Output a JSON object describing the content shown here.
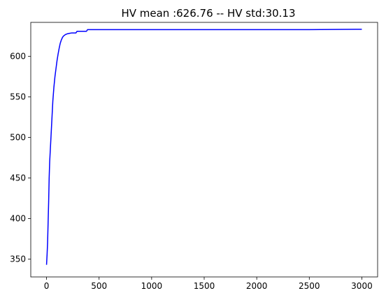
{
  "chart_data": {
    "type": "line",
    "title": "HV mean :626.76 -- HV std:30.13",
    "xlabel": "",
    "ylabel": "",
    "xlim": [
      -150,
      3150
    ],
    "ylim": [
      328,
      642
    ],
    "xticks": [
      0,
      500,
      1000,
      1500,
      2000,
      2500,
      3000
    ],
    "yticks": [
      350,
      400,
      450,
      500,
      550,
      600
    ],
    "grid": false,
    "legend": "none",
    "series": [
      {
        "color": "#0000ff",
        "x": [
          0,
          5,
          10,
          15,
          20,
          25,
          30,
          40,
          50,
          60,
          70,
          80,
          90,
          100,
          110,
          120,
          130,
          140,
          150,
          160,
          170,
          180,
          190,
          200,
          220,
          240,
          260,
          280,
          290,
          300,
          350,
          380,
          390,
          400,
          500,
          1000,
          1500,
          2000,
          2500,
          3000
        ],
        "y": [
          343,
          355,
          370,
          395,
          420,
          450,
          470,
          495,
          520,
          545,
          562,
          575,
          585,
          595,
          603,
          610,
          616,
          620,
          623,
          625,
          626,
          627,
          627.5,
          628,
          628.5,
          629,
          629,
          629,
          631,
          631,
          631,
          631,
          633,
          633,
          633,
          633,
          633,
          633,
          633,
          633.5
        ]
      }
    ]
  }
}
